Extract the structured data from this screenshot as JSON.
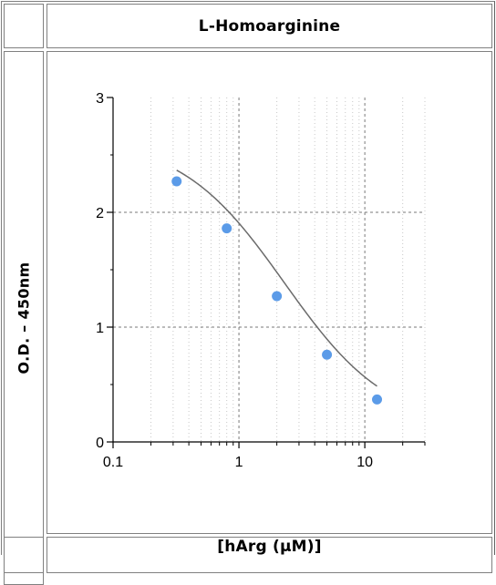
{
  "chart_data": {
    "type": "line",
    "title": "L-Homoarginine",
    "xlabel": "[hArg (µM)]",
    "ylabel": "O.D. – 450nm",
    "x_scale": "log",
    "xlim": [
      0.1,
      30
    ],
    "ylim": [
      0,
      3
    ],
    "x_ticks": [
      {
        "value": 0.1,
        "label": "0.1"
      },
      {
        "value": 1,
        "label": "1"
      },
      {
        "value": 10,
        "label": "10"
      }
    ],
    "y_ticks": [
      {
        "value": 0,
        "label": "0"
      },
      {
        "value": 1,
        "label": "1"
      },
      {
        "value": 2,
        "label": "2"
      },
      {
        "value": 3,
        "label": "3"
      }
    ],
    "grid": true,
    "series": [
      {
        "points": [
          {
            "x": 0.32,
            "y": 2.27
          },
          {
            "x": 0.8,
            "y": 1.86
          },
          {
            "x": 2.0,
            "y": 1.27
          },
          {
            "x": 5.0,
            "y": 0.76
          },
          {
            "x": 12.5,
            "y": 0.37
          }
        ],
        "fit": "4PL"
      }
    ],
    "colors": {
      "points": "#5b9be8",
      "curve": "#6b6b6b",
      "major_grid": "#7a7a7a",
      "minor_grid": "#c8c8c8"
    }
  }
}
